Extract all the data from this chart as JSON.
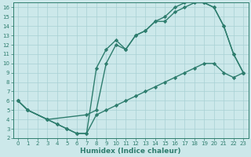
{
  "line1": {
    "x": [
      0,
      1,
      3,
      4,
      5,
      6,
      7,
      8,
      9,
      10,
      11,
      12,
      13,
      14,
      15,
      16,
      17,
      18,
      19,
      20,
      21,
      22,
      23
    ],
    "y": [
      6,
      5,
      4,
      3.5,
      3.0,
      2.5,
      2.5,
      9.5,
      11.5,
      12.5,
      11.5,
      13,
      13.5,
      14.5,
      14.5,
      15.5,
      16,
      16.5,
      16.5,
      16,
      14,
      11,
      9
    ],
    "color": "#2e7d6e",
    "marker": "D",
    "markersize": 2.2,
    "linewidth": 1.0
  },
  "line2": {
    "x": [
      0,
      1,
      3,
      7,
      8,
      9,
      10,
      11,
      12,
      13,
      14,
      15,
      16,
      17,
      18,
      19,
      20,
      21,
      22,
      23
    ],
    "y": [
      6,
      5,
      4,
      4.5,
      5,
      10,
      12,
      11.5,
      13,
      13.5,
      14.5,
      15,
      16,
      16.5,
      17,
      16.5,
      16,
      14,
      11,
      9
    ],
    "color": "#2e7d6e",
    "marker": "D",
    "markersize": 2.2,
    "linewidth": 1.0
  },
  "line3": {
    "x": [
      0,
      1,
      3,
      4,
      5,
      6,
      7,
      8,
      9,
      10,
      11,
      12,
      13,
      14,
      15,
      16,
      17,
      18,
      19,
      20,
      21,
      22,
      23
    ],
    "y": [
      6,
      5,
      4,
      3.5,
      3.0,
      2.5,
      2.5,
      4.5,
      5,
      5.5,
      6,
      6.5,
      7,
      7.5,
      8,
      8.5,
      9,
      9.5,
      10,
      10,
      9,
      8.5,
      9
    ],
    "color": "#2e7d6e",
    "marker": "D",
    "markersize": 2.2,
    "linewidth": 1.0
  },
  "xlim": [
    -0.5,
    23.5
  ],
  "ylim": [
    2,
    16.5
  ],
  "xticks": [
    0,
    1,
    2,
    3,
    4,
    5,
    6,
    7,
    8,
    9,
    10,
    11,
    12,
    13,
    14,
    15,
    16,
    17,
    18,
    19,
    20,
    21,
    22,
    23
  ],
  "yticks": [
    2,
    3,
    4,
    5,
    6,
    7,
    8,
    9,
    10,
    11,
    12,
    13,
    14,
    15,
    16
  ],
  "xlabel": "Humidex (Indice chaleur)",
  "bg_color": "#cce8ea",
  "grid_color": "#a8d0d4",
  "tick_color": "#2e7d6e",
  "label_color": "#2e7d6e",
  "xlabel_fontsize": 6.5,
  "tick_fontsize": 5.0
}
